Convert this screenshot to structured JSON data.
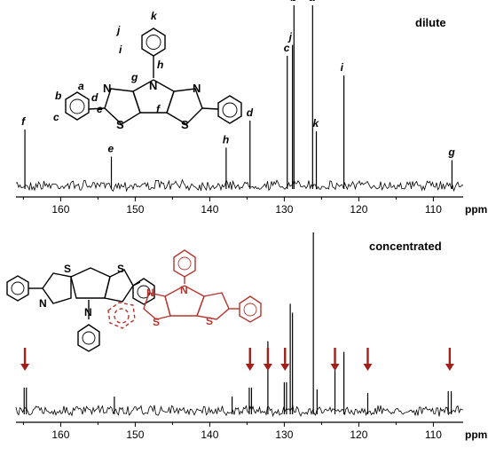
{
  "chart_data": [
    {
      "type": "spectrum",
      "title": "dilute",
      "xlabel": "ppm",
      "xlim": [
        166,
        106
      ],
      "x_reversed": true,
      "ticks": [
        160,
        150,
        140,
        130,
        120,
        110
      ],
      "peaks": [
        {
          "x": 164.8,
          "rel_height": 0.31,
          "label": "f"
        },
        {
          "x": 153.2,
          "rel_height": 0.16,
          "label": "e"
        },
        {
          "x": 137.8,
          "rel_height": 0.21,
          "label": "h"
        },
        {
          "x": 134.6,
          "rel_height": 0.36,
          "label": "d"
        },
        {
          "x": 129.6,
          "rel_height": 0.72,
          "label": "c"
        },
        {
          "x": 128.9,
          "rel_height": 0.78,
          "label": "j"
        },
        {
          "x": 128.7,
          "rel_height": 1.0,
          "label": "b"
        },
        {
          "x": 126.2,
          "rel_height": 1.0,
          "label": "a"
        },
        {
          "x": 125.7,
          "rel_height": 0.3,
          "label": "k"
        },
        {
          "x": 122.0,
          "rel_height": 0.61,
          "label": "i"
        },
        {
          "x": 107.5,
          "rel_height": 0.14,
          "label": "g"
        }
      ],
      "structure_atom_labels": [
        "k",
        "j",
        "i",
        "h",
        "g",
        "a",
        "b",
        "c",
        "d",
        "e",
        "f"
      ],
      "structure_elements": [
        "N",
        "N",
        "N",
        "S",
        "S"
      ]
    },
    {
      "type": "spectrum",
      "title": "concentrated",
      "xlabel": "ppm",
      "xlim": [
        166,
        106
      ],
      "x_reversed": true,
      "ticks": [
        160,
        150,
        140,
        130,
        120,
        110
      ],
      "peaks": [
        {
          "x": 164.9,
          "rel_height": 0.13
        },
        {
          "x": 164.6,
          "rel_height": 0.13
        },
        {
          "x": 152.8,
          "rel_height": 0.08
        },
        {
          "x": 137.0,
          "rel_height": 0.08
        },
        {
          "x": 134.7,
          "rel_height": 0.13
        },
        {
          "x": 134.4,
          "rel_height": 0.13
        },
        {
          "x": 132.2,
          "rel_height": 0.39
        },
        {
          "x": 130.0,
          "rel_height": 0.16
        },
        {
          "x": 129.7,
          "rel_height": 0.16
        },
        {
          "x": 129.2,
          "rel_height": 0.6
        },
        {
          "x": 128.9,
          "rel_height": 0.55
        },
        {
          "x": 126.1,
          "rel_height": 1.0
        },
        {
          "x": 125.6,
          "rel_height": 0.12
        },
        {
          "x": 123.2,
          "rel_height": 0.33
        },
        {
          "x": 122.0,
          "rel_height": 0.33
        },
        {
          "x": 118.8,
          "rel_height": 0.1
        },
        {
          "x": 108.0,
          "rel_height": 0.11
        },
        {
          "x": 107.6,
          "rel_height": 0.11
        }
      ],
      "arrow_positions": [
        164.8,
        134.6,
        132.2,
        129.9,
        123.2,
        118.8,
        107.8
      ],
      "arrow_color": "#a0201a",
      "structure_elements": [
        "N",
        "N",
        "S",
        "S",
        "N",
        "N",
        "S",
        "S"
      ]
    }
  ]
}
